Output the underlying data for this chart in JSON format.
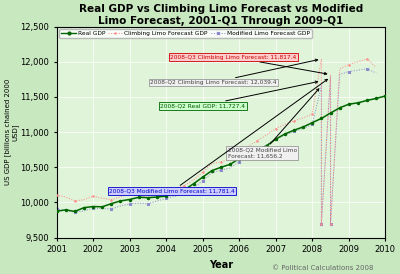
{
  "title": "Real GDP vs Climbing Limo Forecast vs Modified\nLimo Forecast, 2001-Q1 Through 2009-Q1",
  "xlabel": "Year",
  "ylabel": "US GDP [billions chained 2000\nUSD]",
  "xlim": [
    2001,
    2010
  ],
  "ylim": [
    9500,
    12500
  ],
  "yticks": [
    9500,
    10000,
    10500,
    11000,
    11500,
    12000,
    12500
  ],
  "xticks": [
    2001,
    2002,
    2003,
    2004,
    2005,
    2006,
    2007,
    2008,
    2009,
    2010
  ],
  "background_color": "#c8e8c0",
  "plot_bg": "#dff4d8",
  "real_gdp_color": "#006600",
  "climbing_color": "#ff8888",
  "modified_color": "#8888cc",
  "real_gdp": [
    9875.0,
    9895.0,
    9872.0,
    9926.0,
    9942.0,
    9938.0,
    9983.0,
    10022.0,
    10042.0,
    10074.0,
    10068.0,
    10077.0,
    10090.0,
    10138.0,
    10178.0,
    10266.0,
    10360.0,
    10452.0,
    10500.0,
    10541.0,
    10623.0,
    10680.0,
    10748.0,
    10806.0,
    10900.0,
    10973.0,
    11027.0,
    11073.0,
    11134.0,
    11194.0,
    11271.0,
    11345.0,
    11396.0,
    11416.0,
    11450.0,
    11479.0,
    11513.0,
    11545.0,
    11589.0,
    11645.0,
    11658.0,
    11727.4
  ],
  "climbing_limo_x": [
    2001.0,
    2001.25,
    2001.5,
    2001.75,
    2002.0,
    2002.25,
    2002.5,
    2002.75,
    2003.0,
    2003.25,
    2003.5,
    2003.75,
    2004.0,
    2004.25,
    2004.5,
    2004.75,
    2005.0,
    2005.25,
    2005.5,
    2005.75,
    2006.0,
    2006.25,
    2006.5,
    2006.75,
    2007.0,
    2007.25,
    2007.5,
    2007.75,
    2008.0,
    2008.25,
    2008.25,
    2008.5,
    2008.5,
    2008.75,
    2009.0,
    2009.25,
    2009.5,
    2009.75
  ],
  "climbing_limo_y": [
    10100.0,
    10080.0,
    10020.0,
    10040.0,
    10090.0,
    10060.0,
    10040.0,
    10080.0,
    10120.0,
    10100.0,
    10070.0,
    10130.0,
    10160.0,
    10200.0,
    10240.0,
    10320.0,
    10430.0,
    10550.0,
    10580.0,
    10610.0,
    10700.0,
    10800.0,
    10880.0,
    10960.0,
    11050.0,
    11110.0,
    11160.0,
    11200.0,
    11260.0,
    12039.4,
    9700.0,
    11817.4,
    9700.0,
    11900.0,
    11960.0,
    12000.0,
    12040.0,
    11920.0
  ],
  "modified_limo_x": [
    2001.0,
    2001.25,
    2001.5,
    2001.75,
    2002.0,
    2002.25,
    2002.5,
    2002.75,
    2003.0,
    2003.25,
    2003.5,
    2003.75,
    2004.0,
    2004.25,
    2004.5,
    2004.75,
    2005.0,
    2005.25,
    2005.5,
    2005.75,
    2006.0,
    2006.25,
    2006.5,
    2006.75,
    2007.0,
    2007.25,
    2007.5,
    2007.75,
    2008.0,
    2008.25,
    2008.25,
    2008.5,
    2008.5,
    2008.75,
    2009.0,
    2009.25,
    2009.5,
    2009.75
  ],
  "modified_limo_y": [
    9900.0,
    9890.0,
    9860.0,
    9880.0,
    9920.0,
    9910.0,
    9910.0,
    9950.0,
    9980.0,
    9990.0,
    9980.0,
    10020.0,
    10060.0,
    10090.0,
    10130.0,
    10210.0,
    10310.0,
    10420.0,
    10460.0,
    10490.0,
    10580.0,
    10660.0,
    10740.0,
    10820.0,
    10900.0,
    10960.0,
    11010.0,
    11050.0,
    11110.0,
    11656.2,
    9700.0,
    11781.4,
    9700.0,
    11820.0,
    11860.0,
    11880.0,
    11900.0,
    11840.0
  ],
  "annotation_box_color_climbing": "#ffcccc",
  "annotation_box_color_modified": "#ccccff",
  "annotation_box_color_green": "#ccffcc",
  "annotation_box_color_gray": "#f0f0f0",
  "annotation_border_climbing": "#cc0000",
  "annotation_border_modified": "#0000cc",
  "annotation_border_green": "#006600",
  "annotation_border_gray": "#888888",
  "copyright_text": "© Political Calculations 2008"
}
